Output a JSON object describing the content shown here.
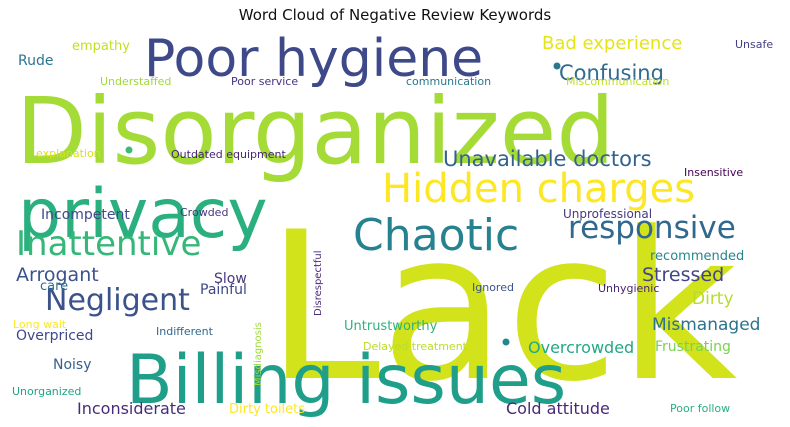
{
  "chart_data": {
    "type": "wordcloud",
    "title": "Word Cloud of Negative Review Keywords",
    "background": "#ffffff",
    "colormap": "viridis",
    "words": [
      {
        "text": "Lack",
        "weight": 1.0,
        "color": "#d2e21b"
      },
      {
        "text": "Disorganized",
        "weight": 0.62,
        "color": "#a5db36"
      },
      {
        "text": "Billing issues",
        "weight": 0.45,
        "color": "#1f9e89"
      },
      {
        "text": "privacy",
        "weight": 0.45,
        "color": "#2ab07f"
      },
      {
        "text": "Poor hygiene",
        "weight": 0.4,
        "color": "#3e4989"
      },
      {
        "text": "Hidden charges",
        "weight": 0.33,
        "color": "#fde725"
      },
      {
        "text": "Chaotic",
        "weight": 0.33,
        "color": "#26828e"
      },
      {
        "text": "Inattentive",
        "weight": 0.26,
        "color": "#35b779"
      },
      {
        "text": "responsive",
        "weight": 0.24,
        "color": "#31688e"
      },
      {
        "text": "Negligent",
        "weight": 0.24,
        "color": "#3b528b"
      },
      {
        "text": "Confusing",
        "weight": 0.16,
        "color": "#306a8e"
      },
      {
        "text": "Unavailable doctors",
        "weight": 0.16,
        "color": "#33638d"
      },
      {
        "text": "Bad experience",
        "weight": 0.13,
        "color": "#e5e419"
      },
      {
        "text": "Arrogant",
        "weight": 0.14,
        "color": "#3b528b"
      },
      {
        "text": "Stressed",
        "weight": 0.14,
        "color": "#414487"
      },
      {
        "text": "Dirty",
        "weight": 0.13,
        "color": "#b5de2b"
      },
      {
        "text": "Mismanaged",
        "weight": 0.12,
        "color": "#2c728e"
      },
      {
        "text": "Overcrowded",
        "weight": 0.12,
        "color": "#22a884"
      },
      {
        "text": "Frustrating",
        "weight": 0.11,
        "color": "#7ad151"
      },
      {
        "text": "Inconsiderate",
        "weight": 0.12,
        "color": "#472c7a"
      },
      {
        "text": "Cold attitude",
        "weight": 0.12,
        "color": "#482878"
      },
      {
        "text": "Incompetent",
        "weight": 0.11,
        "color": "#3e4a89"
      },
      {
        "text": "Painful",
        "weight": 0.1,
        "color": "#404688"
      },
      {
        "text": "Slow",
        "weight": 0.1,
        "color": "#453781"
      },
      {
        "text": "Overpriced",
        "weight": 0.1,
        "color": "#3e4989"
      },
      {
        "text": "Noisy",
        "weight": 0.1,
        "color": "#355f8d"
      },
      {
        "text": "Untrustworthy",
        "weight": 0.1,
        "color": "#2db27d"
      },
      {
        "text": "Dirty toilets",
        "weight": 0.1,
        "color": "#fde725"
      },
      {
        "text": "Rude",
        "weight": 0.09,
        "color": "#2a768e"
      },
      {
        "text": "empathy",
        "weight": 0.09,
        "color": "#c2df23"
      },
      {
        "text": "care",
        "weight": 0.09,
        "color": "#2c718e"
      },
      {
        "text": "recommended",
        "weight": 0.09,
        "color": "#24868e"
      },
      {
        "text": "Unprofessional",
        "weight": 0.09,
        "color": "#443983"
      },
      {
        "text": "Unsafe",
        "weight": 0.08,
        "color": "#424086"
      },
      {
        "text": "Understaffed",
        "weight": 0.07,
        "color": "#9fda3a"
      },
      {
        "text": "Poor service",
        "weight": 0.07,
        "color": "#46327e"
      },
      {
        "text": "communication",
        "weight": 0.07,
        "color": "#2a788e"
      },
      {
        "text": "Miscommunication",
        "weight": 0.07,
        "color": "#bddf26"
      },
      {
        "text": "explanation",
        "weight": 0.07,
        "color": "#d8e219"
      },
      {
        "text": "Outdated equipment",
        "weight": 0.07,
        "color": "#482576"
      },
      {
        "text": "Insensitive",
        "weight": 0.07,
        "color": "#440154"
      },
      {
        "text": "Crowded",
        "weight": 0.07,
        "color": "#453882"
      },
      {
        "text": "Disrespectful",
        "weight": 0.07,
        "color": "#472a7a"
      },
      {
        "text": "Ignored",
        "weight": 0.07,
        "color": "#3b528b"
      },
      {
        "text": "Unhygienic",
        "weight": 0.07,
        "color": "#482475"
      },
      {
        "text": "Long wait",
        "weight": 0.07,
        "color": "#fde725"
      },
      {
        "text": "Indifferent",
        "weight": 0.07,
        "color": "#31688e"
      },
      {
        "text": "Misdiagnosis",
        "weight": 0.07,
        "color": "#a0da39"
      },
      {
        "text": "Delayed treatment",
        "weight": 0.07,
        "color": "#b8de29"
      },
      {
        "text": "Unorganized",
        "weight": 0.07,
        "color": "#20a386"
      },
      {
        "text": "Poor follow",
        "weight": 0.07,
        "color": "#29af7f"
      }
    ]
  }
}
